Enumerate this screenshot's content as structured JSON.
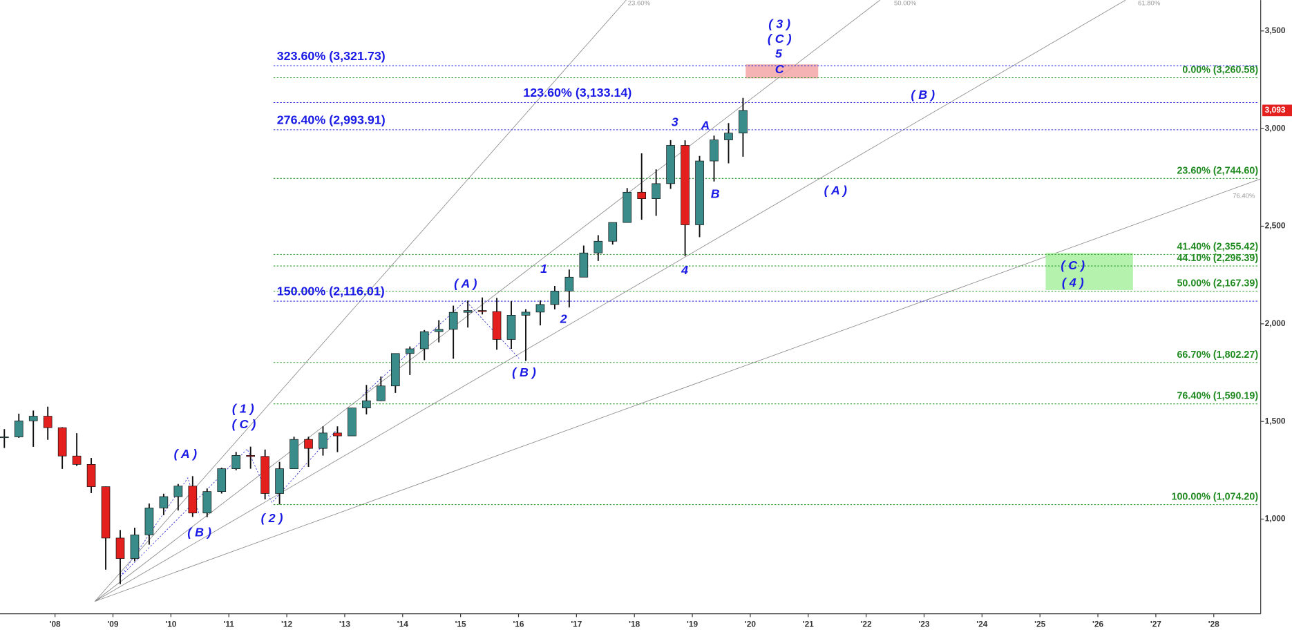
{
  "chart_data": {
    "type": "candlestick",
    "up_color": "#3a8c8a",
    "down_color": "#e3201e",
    "x": [
      2007.125,
      2007.375,
      2007.625,
      2007.875,
      2008.125,
      2008.375,
      2008.625,
      2008.875,
      2009.125,
      2009.375,
      2009.625,
      2009.875,
      2010.125,
      2010.375,
      2010.625,
      2010.875,
      2011.125,
      2011.375,
      2011.625,
      2011.875,
      2012.125,
      2012.375,
      2012.625,
      2012.875,
      2013.125,
      2013.375,
      2013.625,
      2013.875,
      2014.125,
      2014.375,
      2014.625,
      2014.875,
      2015.125,
      2015.375,
      2015.625,
      2015.875,
      2016.125,
      2016.375,
      2016.625,
      2016.875,
      2017.125,
      2017.375,
      2017.625,
      2017.875,
      2018.125,
      2018.375,
      2018.625,
      2018.875,
      2019.125,
      2019.375,
      2019.625,
      2019.875
    ],
    "open": [
      1418,
      1421,
      1503,
      1527,
      1468,
      1323,
      1280,
      1166,
      903,
      798,
      919,
      1057,
      1115,
      1169,
      1031,
      1141,
      1258,
      1326,
      1321,
      1131,
      1258,
      1408,
      1362,
      1441,
      1426,
      1569,
      1606,
      1682,
      1848,
      1872,
      1960,
      1972,
      2059,
      2068,
      2063,
      1920,
      2044,
      2060,
      2099,
      2168,
      2239,
      2363,
      2423,
      2519,
      2674,
      2641,
      2718,
      2914,
      2507,
      2834,
      2942,
      2977
    ],
    "high": [
      1461,
      1540,
      1556,
      1576,
      1471,
      1440,
      1313,
      1167,
      944,
      956,
      1080,
      1130,
      1180,
      1220,
      1157,
      1263,
      1344,
      1371,
      1356,
      1293,
      1422,
      1422,
      1475,
      1475,
      1570,
      1687,
      1730,
      1849,
      1884,
      1968,
      2019,
      2093,
      2119,
      2135,
      2133,
      2116,
      2075,
      2120,
      2194,
      2278,
      2401,
      2454,
      2519,
      2695,
      2873,
      2791,
      2941,
      2940,
      2860,
      2964,
      3028,
      3157
    ],
    "low": [
      1364,
      1416,
      1370,
      1406,
      1257,
      1272,
      1133,
      741,
      667,
      784,
      869,
      1020,
      1044,
      1011,
      1010,
      1131,
      1250,
      1258,
      1101,
      1075,
      1258,
      1267,
      1325,
      1343,
      1426,
      1536,
      1604,
      1646,
      1738,
      1814,
      1905,
      1821,
      1981,
      2048,
      1867,
      1872,
      1810,
      1992,
      2074,
      2084,
      2245,
      2322,
      2406,
      2520,
      2533,
      2553,
      2691,
      2347,
      2444,
      2729,
      2822,
      2856
    ],
    "close": [
      1421,
      1503,
      1527,
      1468,
      1323,
      1280,
      1166,
      903,
      798,
      919,
      1057,
      1115,
      1169,
      1031,
      1141,
      1258,
      1326,
      1321,
      1131,
      1258,
      1408,
      1362,
      1441,
      1426,
      1569,
      1606,
      1682,
      1848,
      1872,
      1960,
      1972,
      2059,
      2068,
      2063,
      1920,
      2044,
      2060,
      2099,
      2168,
      2239,
      2363,
      2423,
      2519,
      2674,
      2641,
      2718,
      2914,
      2507,
      2834,
      2942,
      2977,
      3093
    ],
    "last_price": {
      "value": 3093,
      "label": "3,093"
    },
    "xlim": [
      2007.05,
      2028.81
    ],
    "xticks": [
      {
        "value": 2008,
        "label": "'08"
      },
      {
        "value": 2009,
        "label": "'09"
      },
      {
        "value": 2010,
        "label": "'10"
      },
      {
        "value": 2011,
        "label": "'11"
      },
      {
        "value": 2012,
        "label": "'12"
      },
      {
        "value": 2013,
        "label": "'13"
      },
      {
        "value": 2014,
        "label": "'14"
      },
      {
        "value": 2015,
        "label": "'15"
      },
      {
        "value": 2016,
        "label": "'16"
      },
      {
        "value": 2017,
        "label": "'17"
      },
      {
        "value": 2018,
        "label": "'18"
      },
      {
        "value": 2019,
        "label": "'19"
      },
      {
        "value": 2020,
        "label": "'20"
      },
      {
        "value": 2021,
        "label": "'21"
      },
      {
        "value": 2022,
        "label": "'22"
      },
      {
        "value": 2023,
        "label": "'23"
      },
      {
        "value": 2024,
        "label": "'24"
      },
      {
        "value": 2025,
        "label": "'25"
      },
      {
        "value": 2026,
        "label": "'26"
      },
      {
        "value": 2027,
        "label": "'27"
      },
      {
        "value": 2028,
        "label": "'28"
      }
    ],
    "ylim": [
      515,
      3658
    ],
    "yticks": [
      {
        "value": 1000,
        "label": "1,000"
      },
      {
        "value": 1500,
        "label": "1,500"
      },
      {
        "value": 2000,
        "label": "2,000"
      },
      {
        "value": 2500,
        "label": "2,500"
      },
      {
        "value": 3000,
        "label": "3,000"
      },
      {
        "value": 3500,
        "label": "3,500"
      }
    ],
    "retracement_levels": [
      {
        "value": 3260.58,
        "label": "0.00% (3,260.58)"
      },
      {
        "value": 2744.6,
        "label": "23.60% (2,744.60)"
      },
      {
        "value": 2355.42,
        "label": "41.40% (2,355.42)"
      },
      {
        "value": 2296.39,
        "label": "44.10% (2,296.39)"
      },
      {
        "value": 2167.39,
        "label": "50.00% (2,167.39)"
      },
      {
        "value": 1802.27,
        "label": "66.70% (1,802.27)"
      },
      {
        "value": 1590.19,
        "label": "76.40% (1,590.19)"
      },
      {
        "value": 1074.2,
        "label": "100.00% (1,074.20)"
      }
    ],
    "extension_levels": [
      {
        "value": 3321.73,
        "label": "323.60% (3,321.73)"
      },
      {
        "value": 3133.14,
        "label": "123.60% (3,133.14)"
      },
      {
        "value": 2993.91,
        "label": "276.40% (2,993.91)"
      },
      {
        "value": 2116.01,
        "label": "150.00% (2,116.01)"
      }
    ],
    "fan_labels": [
      "23.60%",
      "50.00%",
      "61.80%",
      "76.40%"
    ],
    "annotations": [
      "( 3 )",
      "( C )",
      "5",
      "C",
      "( B )",
      "3",
      "A",
      "B",
      "( A )",
      "4",
      "1",
      "2",
      "( A )",
      "( B )",
      "( 1 )",
      "( C )",
      "( A )",
      "( B )",
      "( 2 )",
      "( C )",
      "( 4 )"
    ]
  }
}
